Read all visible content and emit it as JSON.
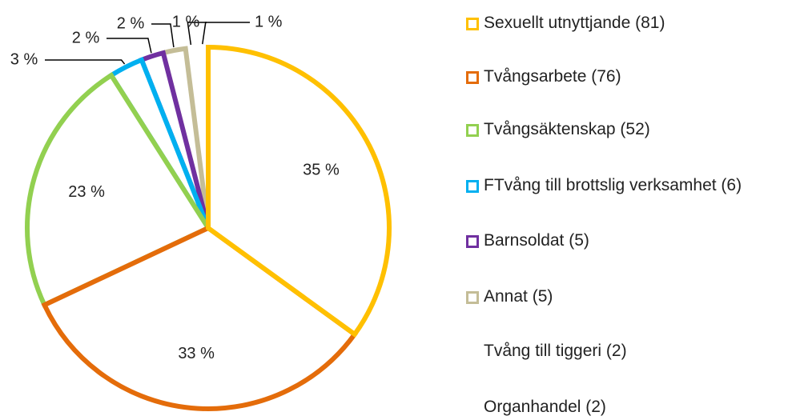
{
  "chart_data": {
    "type": "pie",
    "categories": [
      "Sexuellt utnyttjande (81)",
      "Tvångsarbete (76)",
      "Tvångsäktenskap (52)",
      "FTvång till brottslig verksamhet (6)",
      "Barnsoldat (5)",
      "Annat (5)",
      "Tvång till tiggeri (2)",
      "Organhandel (2)"
    ],
    "values": [
      35,
      33,
      23,
      3,
      2,
      2,
      1,
      1
    ],
    "value_labels": [
      "35 %",
      "33 %",
      "23 %",
      "3 %",
      "2 %",
      "2 %",
      "1 %",
      "1 %"
    ],
    "colors": [
      "#ffc000",
      "#e46c0a",
      "#92d050",
      "#00b0f0",
      "#7030a0",
      "#c4bd97",
      "#ffffff",
      "#ffffff"
    ]
  }
}
